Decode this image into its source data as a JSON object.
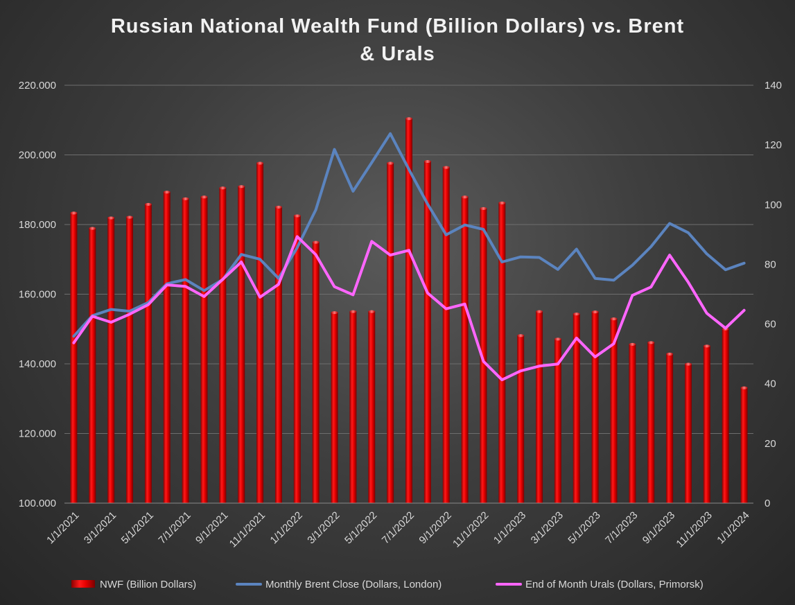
{
  "chart_data": {
    "type": "bar",
    "title_line1": "Russian National Wealth Fund (Billion Dollars) vs. Brent",
    "title_line2": "& Urals",
    "xlabel": "",
    "ylabel": "",
    "ylim": [
      100,
      220
    ],
    "y2lim": [
      0,
      140
    ],
    "y_ticks": [
      "100.000",
      "120.000",
      "140.000",
      "160.000",
      "180.000",
      "200.000",
      "220.000"
    ],
    "y2_ticks": [
      "0",
      "20",
      "40",
      "60",
      "80",
      "100",
      "120",
      "140"
    ],
    "x_tick_labels": [
      "1/1/2021",
      "3/1/2021",
      "5/1/2021",
      "7/1/2021",
      "9/1/2021",
      "11/1/2021",
      "1/1/2022",
      "3/1/2022",
      "5/1/2022",
      "7/1/2022",
      "9/1/2022",
      "11/1/2022",
      "1/1/2023",
      "3/1/2023",
      "5/1/2023",
      "7/1/2023",
      "9/1/2023",
      "11/1/2023",
      "1/1/2024"
    ],
    "categories": [
      "1/1/2021",
      "2/1/2021",
      "3/1/2021",
      "4/1/2021",
      "5/1/2021",
      "6/1/2021",
      "7/1/2021",
      "8/1/2021",
      "9/1/2021",
      "10/1/2021",
      "11/1/2021",
      "12/1/2021",
      "1/1/2022",
      "2/1/2022",
      "3/1/2022",
      "4/1/2022",
      "5/1/2022",
      "6/1/2022",
      "7/1/2022",
      "8/1/2022",
      "9/1/2022",
      "10/1/2022",
      "11/1/2022",
      "12/1/2022",
      "1/1/2023",
      "2/1/2023",
      "3/1/2023",
      "4/1/2023",
      "5/1/2023",
      "6/1/2023",
      "7/1/2023",
      "8/1/2023",
      "9/1/2023",
      "10/1/2023",
      "11/1/2023",
      "12/1/2023",
      "1/1/2024"
    ],
    "series": [
      {
        "name": "NWF (Billion Dollars)",
        "axis": "left",
        "color": "#e00000",
        "values": [
          183.3,
          178.9,
          181.9,
          182.1,
          185.8,
          189.3,
          187.4,
          187.9,
          190.5,
          190.9,
          197.6,
          185.0,
          182.5,
          174.9,
          154.7,
          155.0,
          155.0,
          197.6,
          210.4,
          198.1,
          196.4,
          187.9,
          184.6,
          186.2,
          148.1,
          155.0,
          147.1,
          154.3,
          154.9,
          152.9,
          145.6,
          146.1,
          142.8,
          139.9,
          145.1,
          150.0,
          133.1
        ]
      },
      {
        "name": "Monthly Brent Close (Dollars, London)",
        "axis": "right",
        "color": "#5b84bf",
        "values": [
          55.9,
          62.8,
          64.9,
          64.3,
          67.2,
          73.5,
          74.9,
          71.2,
          74.9,
          83.3,
          81.7,
          75.3,
          85.6,
          98.3,
          118.5,
          104.5,
          114.1,
          123.8,
          111.8,
          100.2,
          89.9,
          93.2,
          91.7,
          80.8,
          82.5,
          82.3,
          78.3,
          85.1,
          75.3,
          74.7,
          79.7,
          85.9,
          93.7,
          90.6,
          83.5,
          78.2,
          80.4
        ]
      },
      {
        "name": "End of Month Urals (Dollars, Primorsk)",
        "axis": "right",
        "color": "#ff66ff",
        "values": [
          53.7,
          62.6,
          60.6,
          63.3,
          66.5,
          73.1,
          72.6,
          69.2,
          75.0,
          80.8,
          69.0,
          73.3,
          89.3,
          83.2,
          72.5,
          69.8,
          87.7,
          83.1,
          84.7,
          70.4,
          65.1,
          66.7,
          47.5,
          41.3,
          44.3,
          45.9,
          46.6,
          55.3,
          49.0,
          53.4,
          69.6,
          72.4,
          83.1,
          74.0,
          63.6,
          58.6,
          64.6
        ]
      }
    ],
    "legend_position": "bottom"
  }
}
